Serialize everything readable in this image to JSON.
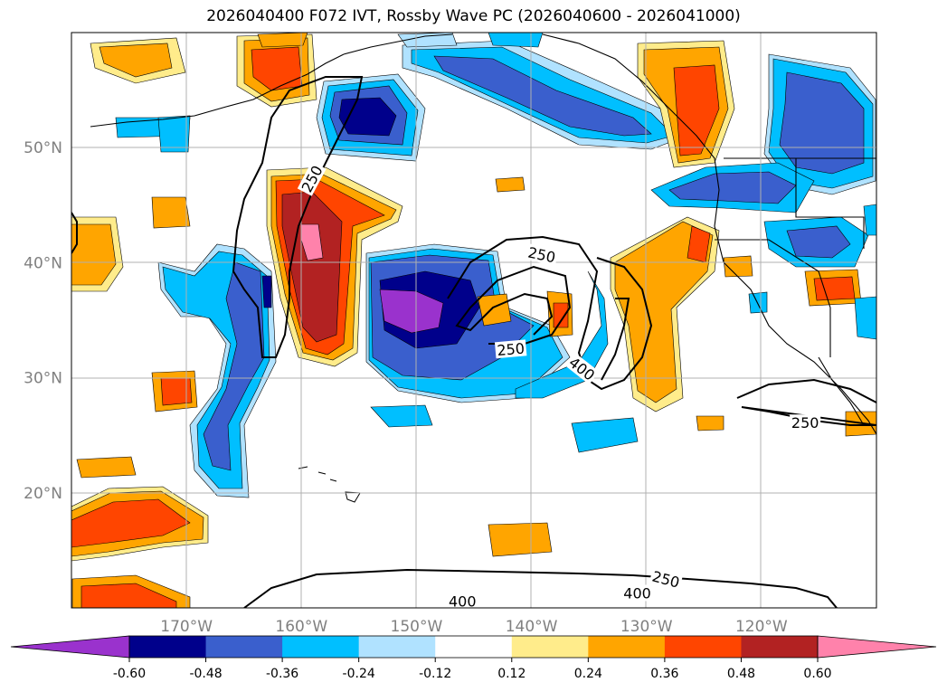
{
  "title": "2026040400 F072 IVT, Rossby Wave PC (2026040600 - 2026041000)",
  "map": {
    "lat_labels": [
      {
        "value": 50,
        "label": "50°N"
      },
      {
        "value": 40,
        "label": "40°N"
      },
      {
        "value": 30,
        "label": "30°N"
      },
      {
        "value": 20,
        "label": "20°N"
      }
    ],
    "lon_labels": [
      {
        "value": -170,
        "label": "170°W"
      },
      {
        "value": -160,
        "label": "160°W"
      },
      {
        "value": -150,
        "label": "150°W"
      },
      {
        "value": -140,
        "label": "140°W"
      },
      {
        "value": -130,
        "label": "130°W"
      },
      {
        "value": -120,
        "label": "120°W"
      }
    ],
    "contour_labels": [
      {
        "text": "250",
        "lon": -159.1,
        "lat": 47.3,
        "rot": -62
      },
      {
        "text": "250",
        "lon": -139.1,
        "lat": 40.7,
        "rot": 12
      },
      {
        "text": "250",
        "lon": -141.8,
        "lat": 32.5,
        "rot": -5
      },
      {
        "text": "400",
        "lon": -135.6,
        "lat": 30.8,
        "rot": 38
      },
      {
        "text": "250",
        "lon": -116.2,
        "lat": 26.1,
        "rot": 0
      },
      {
        "text": "250",
        "lon": -128.3,
        "lat": 12.5,
        "rot": 15
      },
      {
        "text": "400",
        "lon": -130.8,
        "lat": 11.3,
        "rot": 0
      },
      {
        "text": "400",
        "lon": -146.0,
        "lat": 10.6,
        "rot": 0
      }
    ]
  },
  "colorbar": {
    "ticks": [
      "-0.60",
      "-0.48",
      "-0.36",
      "-0.24",
      "-0.12",
      "0.12",
      "0.24",
      "0.36",
      "0.48",
      "0.60"
    ],
    "colors": [
      "#9a32cd",
      "#00008b",
      "#3a5fcd",
      "#00bfff",
      "#b0e2ff",
      "#ffffff",
      "#ffec8b",
      "#ffa500",
      "#ff4500",
      "#b22222",
      "#ff82ab"
    ]
  }
}
